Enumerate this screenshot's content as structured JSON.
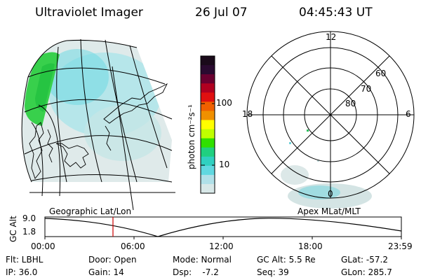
{
  "header": {
    "title": "Ultraviolet Imager",
    "date": "26 Jul 07",
    "time": "04:45:43 UT"
  },
  "colorbar": {
    "unit_label": "photon cm⁻²s⁻¹",
    "ticks": [
      "100",
      "10"
    ],
    "colors": [
      "#1a0a1a",
      "#2a0a30",
      "#6a0030",
      "#b00020",
      "#e01010",
      "#f06000",
      "#f09000",
      "#ffff00",
      "#c0ff00",
      "#30e000",
      "#20d080",
      "#30d0c0",
      "#60d8e0",
      "#b0e0e8",
      "#d8e8e8"
    ]
  },
  "polar": {
    "mlt_labels": {
      "top": "12",
      "left": "18",
      "right": "6",
      "bottom": "0"
    },
    "lat_labels": [
      "60",
      "70",
      "80"
    ]
  },
  "map_label": "Geographic Lat/Lon",
  "polar_label": "Apex MLat/MLT",
  "altplot": {
    "axis_label": "GC Alt",
    "y_ticks": [
      "9.0",
      "1.8"
    ],
    "x_ticks": [
      "00:00",
      "06:00",
      "12:00",
      "18:00",
      "23:59"
    ],
    "marker_color": "#cc0000"
  },
  "info": {
    "flt": "Flt: LBHL",
    "ip": "IP: 36.0",
    "door": "Door: Open",
    "gain": "Gain: 14",
    "mode": "Mode: Normal",
    "dsp": "Dsp:    -7.2",
    "gcalt": "GC Alt: 5.5 Re",
    "seq": "Seq: 39",
    "glat": "GLat: -57.2",
    "glon": "GLon: 285.7"
  }
}
